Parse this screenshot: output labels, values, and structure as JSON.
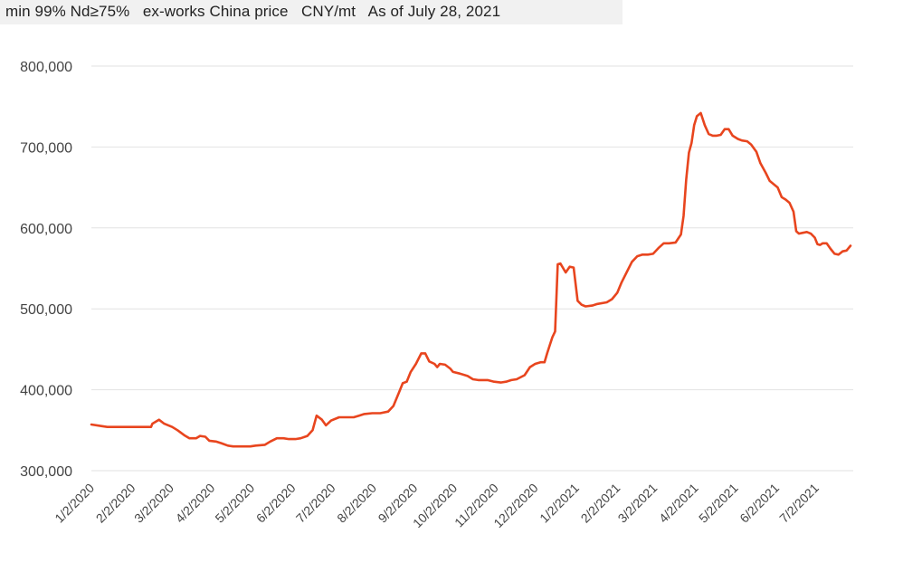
{
  "header": {
    "text": "min 99% Nd≥75%   ex-works China price   CNY/mt   As of July 28, 2021"
  },
  "colors": {
    "line": "#e8451e",
    "grid": "#e2e2e2",
    "header_bg": "#f1f1f1"
  },
  "chart_data": {
    "type": "line",
    "title": "",
    "xlabel": "",
    "ylabel": "",
    "x_ticks": [
      "1/2/2020",
      "2/2/2020",
      "3/2/2020",
      "4/2/2020",
      "5/2/2020",
      "6/2/2020",
      "7/2/2020",
      "8/2/2020",
      "9/2/2020",
      "10/2/2020",
      "11/2/2020",
      "12/2/2020",
      "1/2/2021",
      "2/2/2021",
      "3/2/2021",
      "4/2/2021",
      "5/2/2021",
      "6/2/2021",
      "7/2/2021"
    ],
    "y_ticks": [
      "300,000",
      "400,000",
      "500,000",
      "600,000",
      "700,000",
      "800,000"
    ],
    "ylim": [
      300000,
      800000
    ],
    "xlim": [
      "2020-01-02",
      "2021-07-28"
    ],
    "grid": true,
    "series": [
      {
        "points": [
          [
            "2020-01-02",
            357000
          ],
          [
            "2020-01-10",
            355000
          ],
          [
            "2020-01-14",
            354000
          ],
          [
            "2020-02-01",
            354000
          ],
          [
            "2020-02-16",
            354000
          ],
          [
            "2020-02-17",
            358000
          ],
          [
            "2020-02-22",
            363000
          ],
          [
            "2020-02-26",
            358000
          ],
          [
            "2020-03-03",
            354000
          ],
          [
            "2020-03-07",
            350000
          ],
          [
            "2020-03-12",
            344000
          ],
          [
            "2020-03-16",
            340000
          ],
          [
            "2020-03-21",
            340000
          ],
          [
            "2020-03-24",
            343000
          ],
          [
            "2020-03-28",
            342000
          ],
          [
            "2020-03-31",
            337000
          ],
          [
            "2020-04-05",
            336000
          ],
          [
            "2020-04-09",
            334000
          ],
          [
            "2020-04-14",
            331000
          ],
          [
            "2020-04-18",
            330000
          ],
          [
            "2020-05-01",
            330000
          ],
          [
            "2020-05-05",
            331000
          ],
          [
            "2020-05-12",
            332000
          ],
          [
            "2020-05-16",
            336000
          ],
          [
            "2020-05-21",
            340000
          ],
          [
            "2020-05-26",
            340000
          ],
          [
            "2020-05-30",
            339000
          ],
          [
            "2020-06-04",
            339000
          ],
          [
            "2020-06-08",
            340000
          ],
          [
            "2020-06-13",
            343000
          ],
          [
            "2020-06-17",
            350000
          ],
          [
            "2020-06-20",
            368000
          ],
          [
            "2020-06-24",
            363000
          ],
          [
            "2020-06-27",
            356000
          ],
          [
            "2020-07-01",
            362000
          ],
          [
            "2020-07-07",
            366000
          ],
          [
            "2020-07-13",
            366000
          ],
          [
            "2020-07-18",
            366000
          ],
          [
            "2020-07-22",
            368000
          ],
          [
            "2020-07-26",
            370000
          ],
          [
            "2020-08-01",
            371000
          ],
          [
            "2020-08-07",
            371000
          ],
          [
            "2020-08-13",
            373000
          ],
          [
            "2020-08-17",
            380000
          ],
          [
            "2020-08-21",
            396000
          ],
          [
            "2020-08-24",
            408000
          ],
          [
            "2020-08-27",
            410000
          ],
          [
            "2020-08-30",
            422000
          ],
          [
            "2020-09-03",
            432000
          ],
          [
            "2020-09-07",
            445000
          ],
          [
            "2020-09-10",
            445000
          ],
          [
            "2020-09-13",
            435000
          ],
          [
            "2020-09-17",
            432000
          ],
          [
            "2020-09-19",
            428000
          ],
          [
            "2020-09-21",
            432000
          ],
          [
            "2020-09-25",
            431000
          ],
          [
            "2020-09-29",
            426000
          ],
          [
            "2020-10-01",
            422000
          ],
          [
            "2020-10-06",
            420000
          ],
          [
            "2020-10-12",
            417000
          ],
          [
            "2020-10-16",
            413000
          ],
          [
            "2020-10-20",
            412000
          ],
          [
            "2020-10-27",
            412000
          ],
          [
            "2020-11-01",
            410000
          ],
          [
            "2020-11-06",
            409000
          ],
          [
            "2020-11-10",
            410000
          ],
          [
            "2020-11-14",
            412000
          ],
          [
            "2020-11-18",
            413000
          ],
          [
            "2020-11-24",
            418000
          ],
          [
            "2020-11-28",
            428000
          ],
          [
            "2020-12-02",
            432000
          ],
          [
            "2020-12-06",
            434000
          ],
          [
            "2020-12-09",
            434000
          ],
          [
            "2020-12-11",
            445000
          ],
          [
            "2020-12-13",
            455000
          ],
          [
            "2020-12-15",
            465000
          ],
          [
            "2020-12-17",
            472000
          ],
          [
            "2020-12-19",
            555000
          ],
          [
            "2020-12-21",
            556000
          ],
          [
            "2020-12-25",
            545000
          ],
          [
            "2020-12-28",
            552000
          ],
          [
            "2020-12-31",
            551000
          ],
          [
            "2021-01-03",
            510000
          ],
          [
            "2021-01-06",
            505000
          ],
          [
            "2021-01-09",
            503000
          ],
          [
            "2021-01-14",
            504000
          ],
          [
            "2021-01-18",
            506000
          ],
          [
            "2021-01-25",
            508000
          ],
          [
            "2021-01-29",
            512000
          ],
          [
            "2021-02-02",
            520000
          ],
          [
            "2021-02-05",
            532000
          ],
          [
            "2021-02-09",
            545000
          ],
          [
            "2021-02-13",
            558000
          ],
          [
            "2021-02-17",
            565000
          ],
          [
            "2021-02-21",
            567000
          ],
          [
            "2021-02-25",
            567000
          ],
          [
            "2021-03-01",
            568000
          ],
          [
            "2021-03-05",
            575000
          ],
          [
            "2021-03-09",
            581000
          ],
          [
            "2021-03-13",
            581000
          ],
          [
            "2021-03-18",
            582000
          ],
          [
            "2021-03-22",
            592000
          ],
          [
            "2021-03-24",
            615000
          ],
          [
            "2021-03-26",
            660000
          ],
          [
            "2021-03-28",
            693000
          ],
          [
            "2021-03-30",
            705000
          ],
          [
            "2021-04-01",
            727000
          ],
          [
            "2021-04-03",
            738000
          ],
          [
            "2021-04-06",
            742000
          ],
          [
            "2021-04-09",
            727000
          ],
          [
            "2021-04-12",
            716000
          ],
          [
            "2021-04-15",
            714000
          ],
          [
            "2021-04-18",
            714000
          ],
          [
            "2021-04-21",
            715000
          ],
          [
            "2021-04-24",
            722000
          ],
          [
            "2021-04-27",
            722000
          ],
          [
            "2021-04-30",
            714000
          ],
          [
            "2021-05-04",
            710000
          ],
          [
            "2021-05-07",
            708000
          ],
          [
            "2021-05-11",
            707000
          ],
          [
            "2021-05-14",
            703000
          ],
          [
            "2021-05-18",
            694000
          ],
          [
            "2021-05-21",
            680000
          ],
          [
            "2021-05-25",
            668000
          ],
          [
            "2021-05-28",
            658000
          ],
          [
            "2021-05-31",
            654000
          ],
          [
            "2021-06-03",
            650000
          ],
          [
            "2021-06-06",
            638000
          ],
          [
            "2021-06-09",
            635000
          ],
          [
            "2021-06-12",
            631000
          ],
          [
            "2021-06-15",
            620000
          ],
          [
            "2021-06-17",
            596000
          ],
          [
            "2021-06-19",
            593000
          ],
          [
            "2021-06-22",
            594000
          ],
          [
            "2021-06-25",
            595000
          ],
          [
            "2021-06-28",
            593000
          ],
          [
            "2021-07-01",
            588000
          ],
          [
            "2021-07-03",
            580000
          ],
          [
            "2021-07-05",
            579000
          ],
          [
            "2021-07-07",
            581000
          ],
          [
            "2021-07-10",
            581000
          ],
          [
            "2021-07-13",
            574000
          ],
          [
            "2021-07-16",
            568000
          ],
          [
            "2021-07-19",
            567000
          ],
          [
            "2021-07-22",
            571000
          ],
          [
            "2021-07-25",
            572000
          ],
          [
            "2021-07-28",
            578000
          ]
        ]
      }
    ]
  }
}
